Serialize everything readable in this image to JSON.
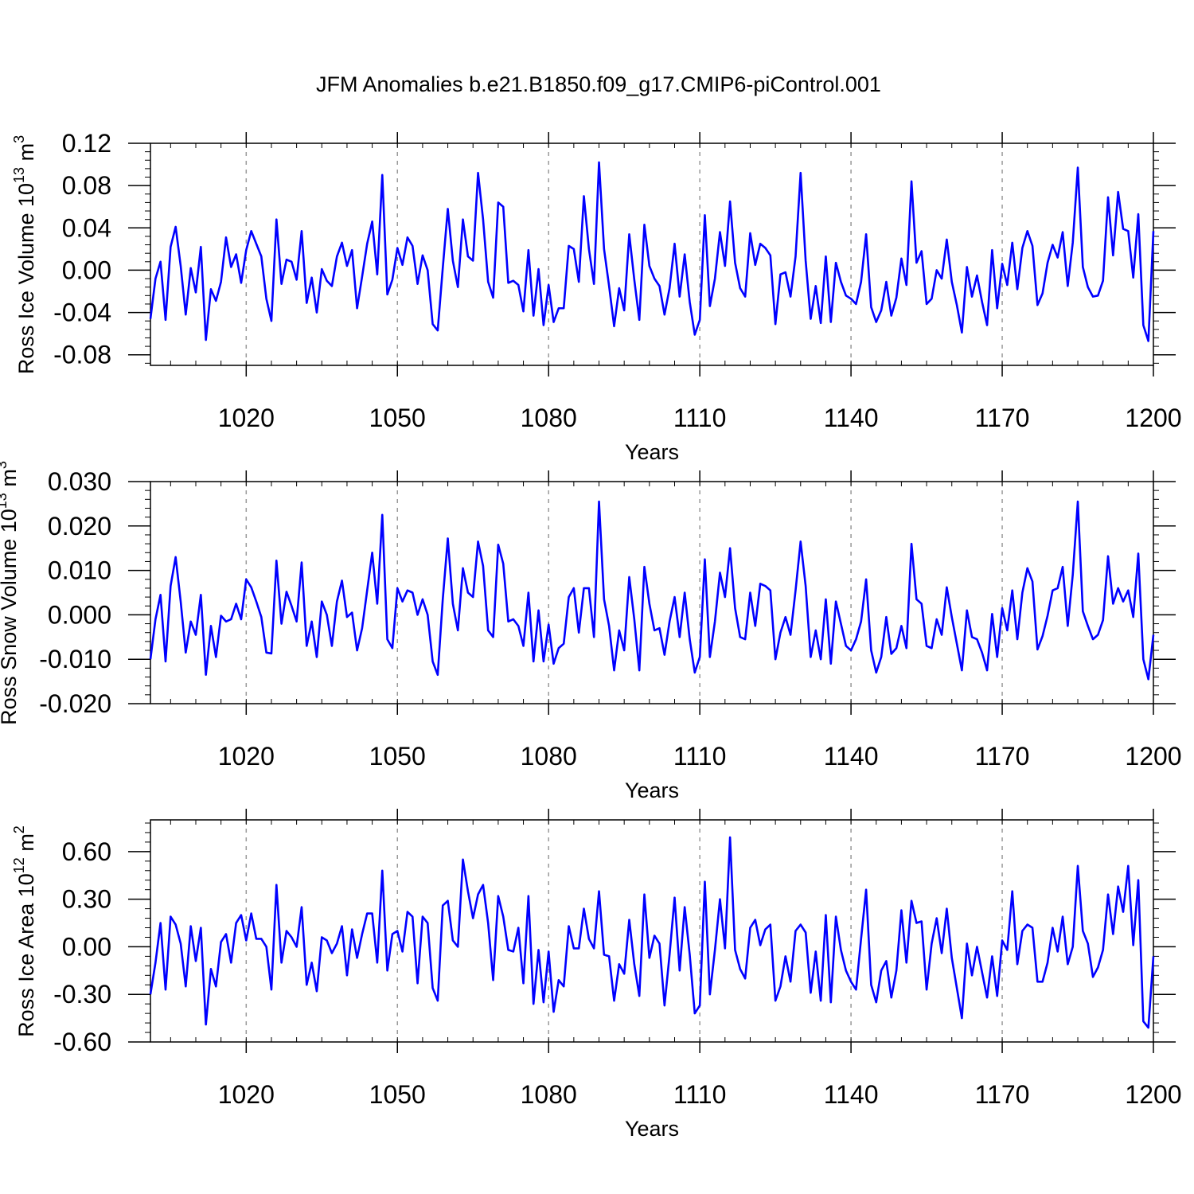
{
  "title": "JFM Anomalies b.e21.B1850.f09_g17.CMIP6-piControl.001",
  "line_color": "#0000ff",
  "chart_data": [
    {
      "type": "line",
      "ylabel": "Ross Ice Volume 10",
      "ylabel_sup": "13",
      "ylabel_unit": " m",
      "ylabel_unit_sup": "3",
      "xlabel": "Years",
      "xlim": [
        1001,
        1200
      ],
      "ylim": [
        -0.09,
        0.12
      ],
      "yticks": [
        0.12,
        0.08,
        0.04,
        0.0,
        -0.04,
        -0.08
      ],
      "ytick_labels": [
        "0.12",
        "0.08",
        "0.04",
        "0.00",
        "-0.04",
        "-0.08"
      ],
      "xticks": [
        1020,
        1050,
        1080,
        1110,
        1140,
        1170,
        1200
      ],
      "xtick_labels": [
        "1020",
        "1050",
        "1080",
        "1110",
        "1140",
        "1170",
        "1200"
      ],
      "x_start": 1001,
      "values": [
        -0.046,
        -0.008,
        0.008,
        -0.047,
        0.022,
        0.041,
        0.004,
        -0.042,
        0.002,
        -0.021,
        0.022,
        -0.066,
        -0.018,
        -0.029,
        -0.011,
        0.031,
        0.003,
        0.015,
        -0.012,
        0.019,
        0.037,
        0.025,
        0.013,
        -0.027,
        -0.048,
        0.048,
        -0.013,
        0.01,
        0.008,
        -0.009,
        0.037,
        -0.031,
        -0.007,
        -0.04,
        0.001,
        -0.01,
        -0.015,
        0.013,
        0.026,
        0.004,
        0.019,
        -0.036,
        -0.006,
        0.025,
        0.046,
        -0.004,
        0.09,
        -0.023,
        -0.009,
        0.021,
        0.005,
        0.031,
        0.023,
        -0.013,
        0.014,
        0.0,
        -0.051,
        -0.057,
        0.002,
        0.058,
        0.009,
        -0.016,
        0.048,
        0.013,
        0.009,
        0.092,
        0.048,
        -0.011,
        -0.026,
        0.064,
        0.06,
        -0.012,
        -0.01,
        -0.014,
        -0.039,
        0.019,
        -0.043,
        0.001,
        -0.052,
        -0.014,
        -0.049,
        -0.036,
        -0.036,
        0.023,
        0.02,
        -0.011,
        0.07,
        0.02,
        -0.013,
        0.102,
        0.02,
        -0.015,
        -0.053,
        -0.017,
        -0.038,
        0.034,
        -0.009,
        -0.047,
        0.043,
        0.004,
        -0.008,
        -0.015,
        -0.042,
        -0.017,
        0.025,
        -0.025,
        0.015,
        -0.03,
        -0.061,
        -0.047,
        0.052,
        -0.034,
        -0.008,
        0.036,
        0.004,
        0.065,
        0.007,
        -0.017,
        -0.025,
        0.035,
        0.005,
        0.025,
        0.021,
        0.014,
        -0.051,
        -0.004,
        -0.002,
        -0.025,
        0.013,
        0.092,
        0.009,
        -0.046,
        -0.015,
        -0.05,
        0.013,
        -0.049,
        0.007,
        -0.011,
        -0.024,
        -0.027,
        -0.032,
        -0.011,
        0.034,
        -0.035,
        -0.049,
        -0.038,
        -0.011,
        -0.043,
        -0.026,
        0.011,
        -0.014,
        0.084,
        0.007,
        0.018,
        -0.032,
        -0.027,
        0.0,
        -0.008,
        0.029,
        -0.011,
        -0.033,
        -0.059,
        0.003,
        -0.025,
        -0.005,
        -0.03,
        -0.052,
        0.019,
        -0.036,
        0.006,
        -0.014,
        0.026,
        -0.018,
        0.021,
        0.037,
        0.023,
        -0.033,
        -0.022,
        0.007,
        0.024,
        0.012,
        0.036,
        -0.015,
        0.026,
        0.097,
        0.003,
        -0.016,
        -0.025,
        -0.024,
        -0.01,
        0.069,
        0.014,
        0.074,
        0.039,
        0.037,
        -0.007,
        0.053,
        -0.052,
        -0.067,
        0.037
      ]
    },
    {
      "type": "line",
      "ylabel": "Ross Snow Volume 10",
      "ylabel_sup": "13",
      "ylabel_unit": " m",
      "ylabel_unit_sup": "3",
      "xlabel": "Years",
      "xlim": [
        1001,
        1200
      ],
      "ylim": [
        -0.02,
        0.03
      ],
      "yticks": [
        0.03,
        0.02,
        0.01,
        0.0,
        -0.01,
        -0.02
      ],
      "ytick_labels": [
        "0.030",
        "0.020",
        "0.010",
        "0.000",
        "-0.010",
        "-0.020"
      ],
      "xticks": [
        1020,
        1050,
        1080,
        1110,
        1140,
        1170,
        1200
      ],
      "xtick_labels": [
        "1020",
        "1050",
        "1080",
        "1110",
        "1140",
        "1170",
        "1200"
      ],
      "x_start": 1001,
      "values": [
        -0.01,
        -0.001,
        0.0045,
        -0.0105,
        0.0065,
        0.013,
        0.003,
        -0.0085,
        -0.0015,
        -0.0045,
        0.0045,
        -0.0135,
        -0.0025,
        -0.0095,
        -0.0002,
        -0.0015,
        -0.001,
        0.0025,
        -0.001,
        0.008,
        0.0062,
        0.003,
        -0.0005,
        -0.0085,
        -0.0087,
        0.0122,
        -0.002,
        0.0052,
        0.002,
        -0.0015,
        0.0118,
        -0.007,
        -0.0015,
        -0.0095,
        0.003,
        0.0,
        -0.007,
        0.003,
        0.0077,
        -0.0005,
        0.0005,
        -0.008,
        -0.003,
        0.0055,
        0.014,
        0.0025,
        0.0225,
        -0.0055,
        -0.0075,
        0.006,
        0.003,
        0.0055,
        0.005,
        0.0,
        0.0035,
        0.0,
        -0.0105,
        -0.0135,
        0.0035,
        0.0172,
        0.0025,
        -0.0035,
        0.0105,
        0.005,
        0.004,
        0.0165,
        0.011,
        -0.0035,
        -0.005,
        0.0158,
        0.0115,
        -0.0015,
        -0.001,
        -0.0025,
        -0.007,
        0.005,
        -0.0105,
        0.001,
        -0.0105,
        -0.0022,
        -0.011,
        -0.0075,
        -0.0065,
        0.004,
        0.006,
        -0.004,
        0.006,
        0.006,
        -0.005,
        0.0255,
        0.0035,
        -0.0025,
        -0.0125,
        -0.0035,
        -0.008,
        0.0085,
        -0.001,
        -0.0125,
        0.0108,
        0.0025,
        -0.0035,
        -0.003,
        -0.009,
        -0.0015,
        0.004,
        -0.005,
        0.005,
        -0.0055,
        -0.013,
        -0.0095,
        0.0125,
        -0.0095,
        -0.0015,
        0.0095,
        0.004,
        0.015,
        0.0015,
        -0.005,
        -0.0055,
        0.005,
        -0.0025,
        0.007,
        0.0065,
        0.0055,
        -0.01,
        -0.004,
        -0.0005,
        -0.0045,
        0.0055,
        0.0165,
        0.0065,
        -0.0095,
        -0.0035,
        -0.01,
        0.0035,
        -0.011,
        0.003,
        -0.002,
        -0.007,
        -0.008,
        -0.0055,
        -0.0015,
        0.008,
        -0.008,
        -0.013,
        -0.0095,
        -0.0005,
        -0.0088,
        -0.0075,
        -0.0025,
        -0.0075,
        0.016,
        0.0035,
        0.0025,
        -0.007,
        -0.0075,
        -0.001,
        -0.0045,
        0.0062,
        -0.0005,
        -0.0065,
        -0.0125,
        0.001,
        -0.005,
        -0.0055,
        -0.0085,
        -0.0125,
        0.0002,
        -0.0095,
        0.0015,
        -0.0035,
        0.0055,
        -0.0055,
        0.005,
        0.0105,
        0.0075,
        -0.0078,
        -0.0048,
        -0.0002,
        0.0055,
        0.006,
        0.0108,
        -0.0025,
        0.009,
        0.0255,
        0.0008,
        -0.0025,
        -0.0055,
        -0.0045,
        -0.0012,
        0.0132,
        0.0025,
        0.006,
        0.003,
        0.0055,
        -0.0005,
        0.0138,
        -0.01,
        -0.0145,
        -0.0045
      ]
    },
    {
      "type": "line",
      "ylabel": "Ross Ice Area 10",
      "ylabel_sup": "12",
      "ylabel_unit": " m",
      "ylabel_unit_sup": "2",
      "xlabel": "Years",
      "xlim": [
        1001,
        1200
      ],
      "ylim": [
        -0.6,
        0.8
      ],
      "yticks": [
        0.6,
        0.3,
        0.0,
        -0.3,
        -0.6
      ],
      "ytick_labels": [
        "0.60",
        "0.30",
        "0.00",
        "-0.30",
        "-0.60"
      ],
      "xticks": [
        1020,
        1050,
        1080,
        1110,
        1140,
        1170,
        1200
      ],
      "xtick_labels": [
        "1020",
        "1050",
        "1080",
        "1110",
        "1140",
        "1170",
        "1200"
      ],
      "x_start": 1001,
      "values": [
        -0.3,
        -0.1,
        0.15,
        -0.27,
        0.19,
        0.14,
        0.02,
        -0.25,
        0.13,
        -0.09,
        0.12,
        -0.49,
        -0.14,
        -0.25,
        0.03,
        0.08,
        -0.1,
        0.15,
        0.2,
        0.04,
        0.21,
        0.05,
        0.05,
        0.0,
        -0.27,
        0.39,
        -0.1,
        0.1,
        0.06,
        0.0,
        0.25,
        -0.24,
        -0.1,
        -0.28,
        0.06,
        0.04,
        -0.04,
        0.02,
        0.13,
        -0.18,
        0.11,
        -0.07,
        0.08,
        0.21,
        0.21,
        -0.1,
        0.48,
        -0.15,
        0.08,
        0.1,
        -0.03,
        0.22,
        0.19,
        -0.23,
        0.19,
        0.15,
        -0.26,
        -0.34,
        0.26,
        0.29,
        0.04,
        0.0,
        0.55,
        0.35,
        0.18,
        0.33,
        0.39,
        0.15,
        -0.21,
        0.32,
        0.19,
        -0.02,
        -0.03,
        0.12,
        -0.23,
        0.32,
        -0.36,
        -0.02,
        -0.35,
        -0.03,
        -0.41,
        -0.21,
        -0.25,
        0.13,
        -0.01,
        -0.01,
        0.24,
        0.05,
        -0.01,
        0.35,
        -0.05,
        -0.06,
        -0.34,
        -0.11,
        -0.17,
        0.17,
        -0.11,
        -0.31,
        0.33,
        -0.07,
        0.07,
        0.02,
        -0.37,
        -0.05,
        0.31,
        -0.15,
        0.25,
        -0.05,
        -0.42,
        -0.37,
        0.41,
        -0.3,
        -0.02,
        0.3,
        -0.01,
        0.69,
        -0.02,
        -0.14,
        -0.2,
        0.12,
        0.17,
        0.01,
        0.11,
        0.14,
        -0.34,
        -0.25,
        -0.06,
        -0.22,
        0.1,
        0.14,
        0.09,
        -0.29,
        -0.03,
        -0.34,
        0.2,
        -0.35,
        0.19,
        -0.02,
        -0.15,
        -0.22,
        -0.27,
        0.05,
        0.36,
        -0.24,
        -0.35,
        -0.15,
        -0.09,
        -0.32,
        -0.15,
        0.23,
        -0.1,
        0.29,
        0.15,
        0.16,
        -0.27,
        0.02,
        0.18,
        -0.04,
        0.24,
        -0.07,
        -0.26,
        -0.45,
        0.02,
        -0.18,
        0.0,
        -0.16,
        -0.32,
        -0.06,
        -0.31,
        0.04,
        -0.02,
        0.35,
        -0.11,
        0.1,
        0.14,
        0.12,
        -0.22,
        -0.22,
        -0.1,
        0.12,
        -0.03,
        0.19,
        -0.11,
        0.0,
        0.51,
        0.1,
        0.02,
        -0.19,
        -0.13,
        -0.02,
        0.33,
        0.08,
        0.38,
        0.22,
        0.51,
        0.01,
        0.42,
        -0.47,
        -0.51,
        -0.06
      ]
    }
  ]
}
